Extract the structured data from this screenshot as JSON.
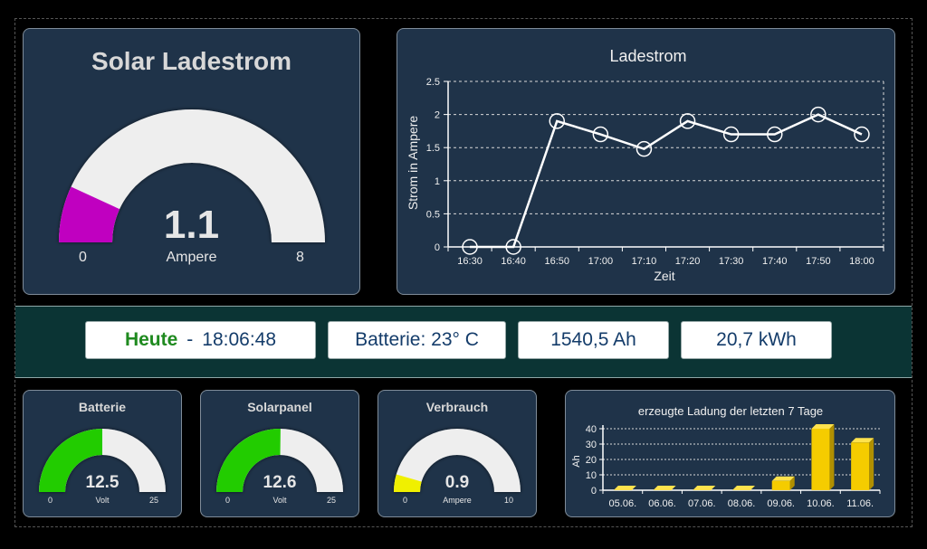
{
  "main_gauge": {
    "title": "Solar Ladestrom",
    "value": "1.1",
    "unit": "Ampere",
    "min": "0",
    "max": "8",
    "level": 1.1,
    "range": [
      0,
      8
    ],
    "fill_color": "#c000c0"
  },
  "line_chart": {
    "title": "Ladestrom",
    "ylabel": "Strom in Ampere",
    "xlabel": "Zeit"
  },
  "info": {
    "heute": "Heute",
    "sep": "-",
    "time": "18:06:48",
    "batterie": "Batterie: 23° C",
    "ah": "1540,5 Ah",
    "kwh": "20,7 kWh"
  },
  "gauges": [
    {
      "title": "Batterie",
      "value": "12.5",
      "unit": "Volt",
      "min": "0",
      "max": "25",
      "level": 12.5,
      "range": [
        0,
        25
      ],
      "fill_color": "#22cc00"
    },
    {
      "title": "Solarpanel",
      "value": "12.6",
      "unit": "Volt",
      "min": "0",
      "max": "25",
      "level": 12.6,
      "range": [
        0,
        25
      ],
      "fill_color": "#22cc00"
    },
    {
      "title": "Verbrauch",
      "value": "0.9",
      "unit": "Ampere",
      "min": "0",
      "max": "10",
      "level": 0.9,
      "range": [
        0,
        10
      ],
      "fill_color": "#f0f000"
    }
  ],
  "bar_chart": {
    "title": "erzeugte Ladung der letzten 7 Tage",
    "ylabel": "Ah"
  },
  "chart_data": [
    {
      "type": "line",
      "title": "Ladestrom",
      "xlabel": "Zeit",
      "ylabel": "Strom in Ampere",
      "x": [
        "16:30",
        "16:40",
        "16:50",
        "17:00",
        "17:10",
        "17:20",
        "17:30",
        "17:40",
        "17:50",
        "18:00"
      ],
      "series": [
        {
          "values": [
            0,
            0,
            1.9,
            1.7,
            1.48,
            1.9,
            1.7,
            1.7,
            2.0,
            1.7
          ]
        }
      ],
      "yticks": [
        "0",
        "0.5",
        "1",
        "1.5",
        "2",
        "2.5"
      ],
      "ylim": [
        0,
        2.5
      ],
      "grid": true,
      "color": "#ffffff"
    },
    {
      "type": "bar",
      "title": "erzeugte Ladung der letzten 7 Tage",
      "ylabel": "Ah",
      "categories": [
        "05.06.",
        "06.06.",
        "07.06.",
        "08.06.",
        "09.06.",
        "10.06.",
        "11.06."
      ],
      "values": [
        0,
        0,
        0,
        0,
        6,
        40,
        31
      ],
      "yticks": [
        "0",
        "10",
        "20",
        "30",
        "40"
      ],
      "ylim": [
        0,
        40
      ],
      "grid": true,
      "color": "#f5cc00"
    }
  ]
}
